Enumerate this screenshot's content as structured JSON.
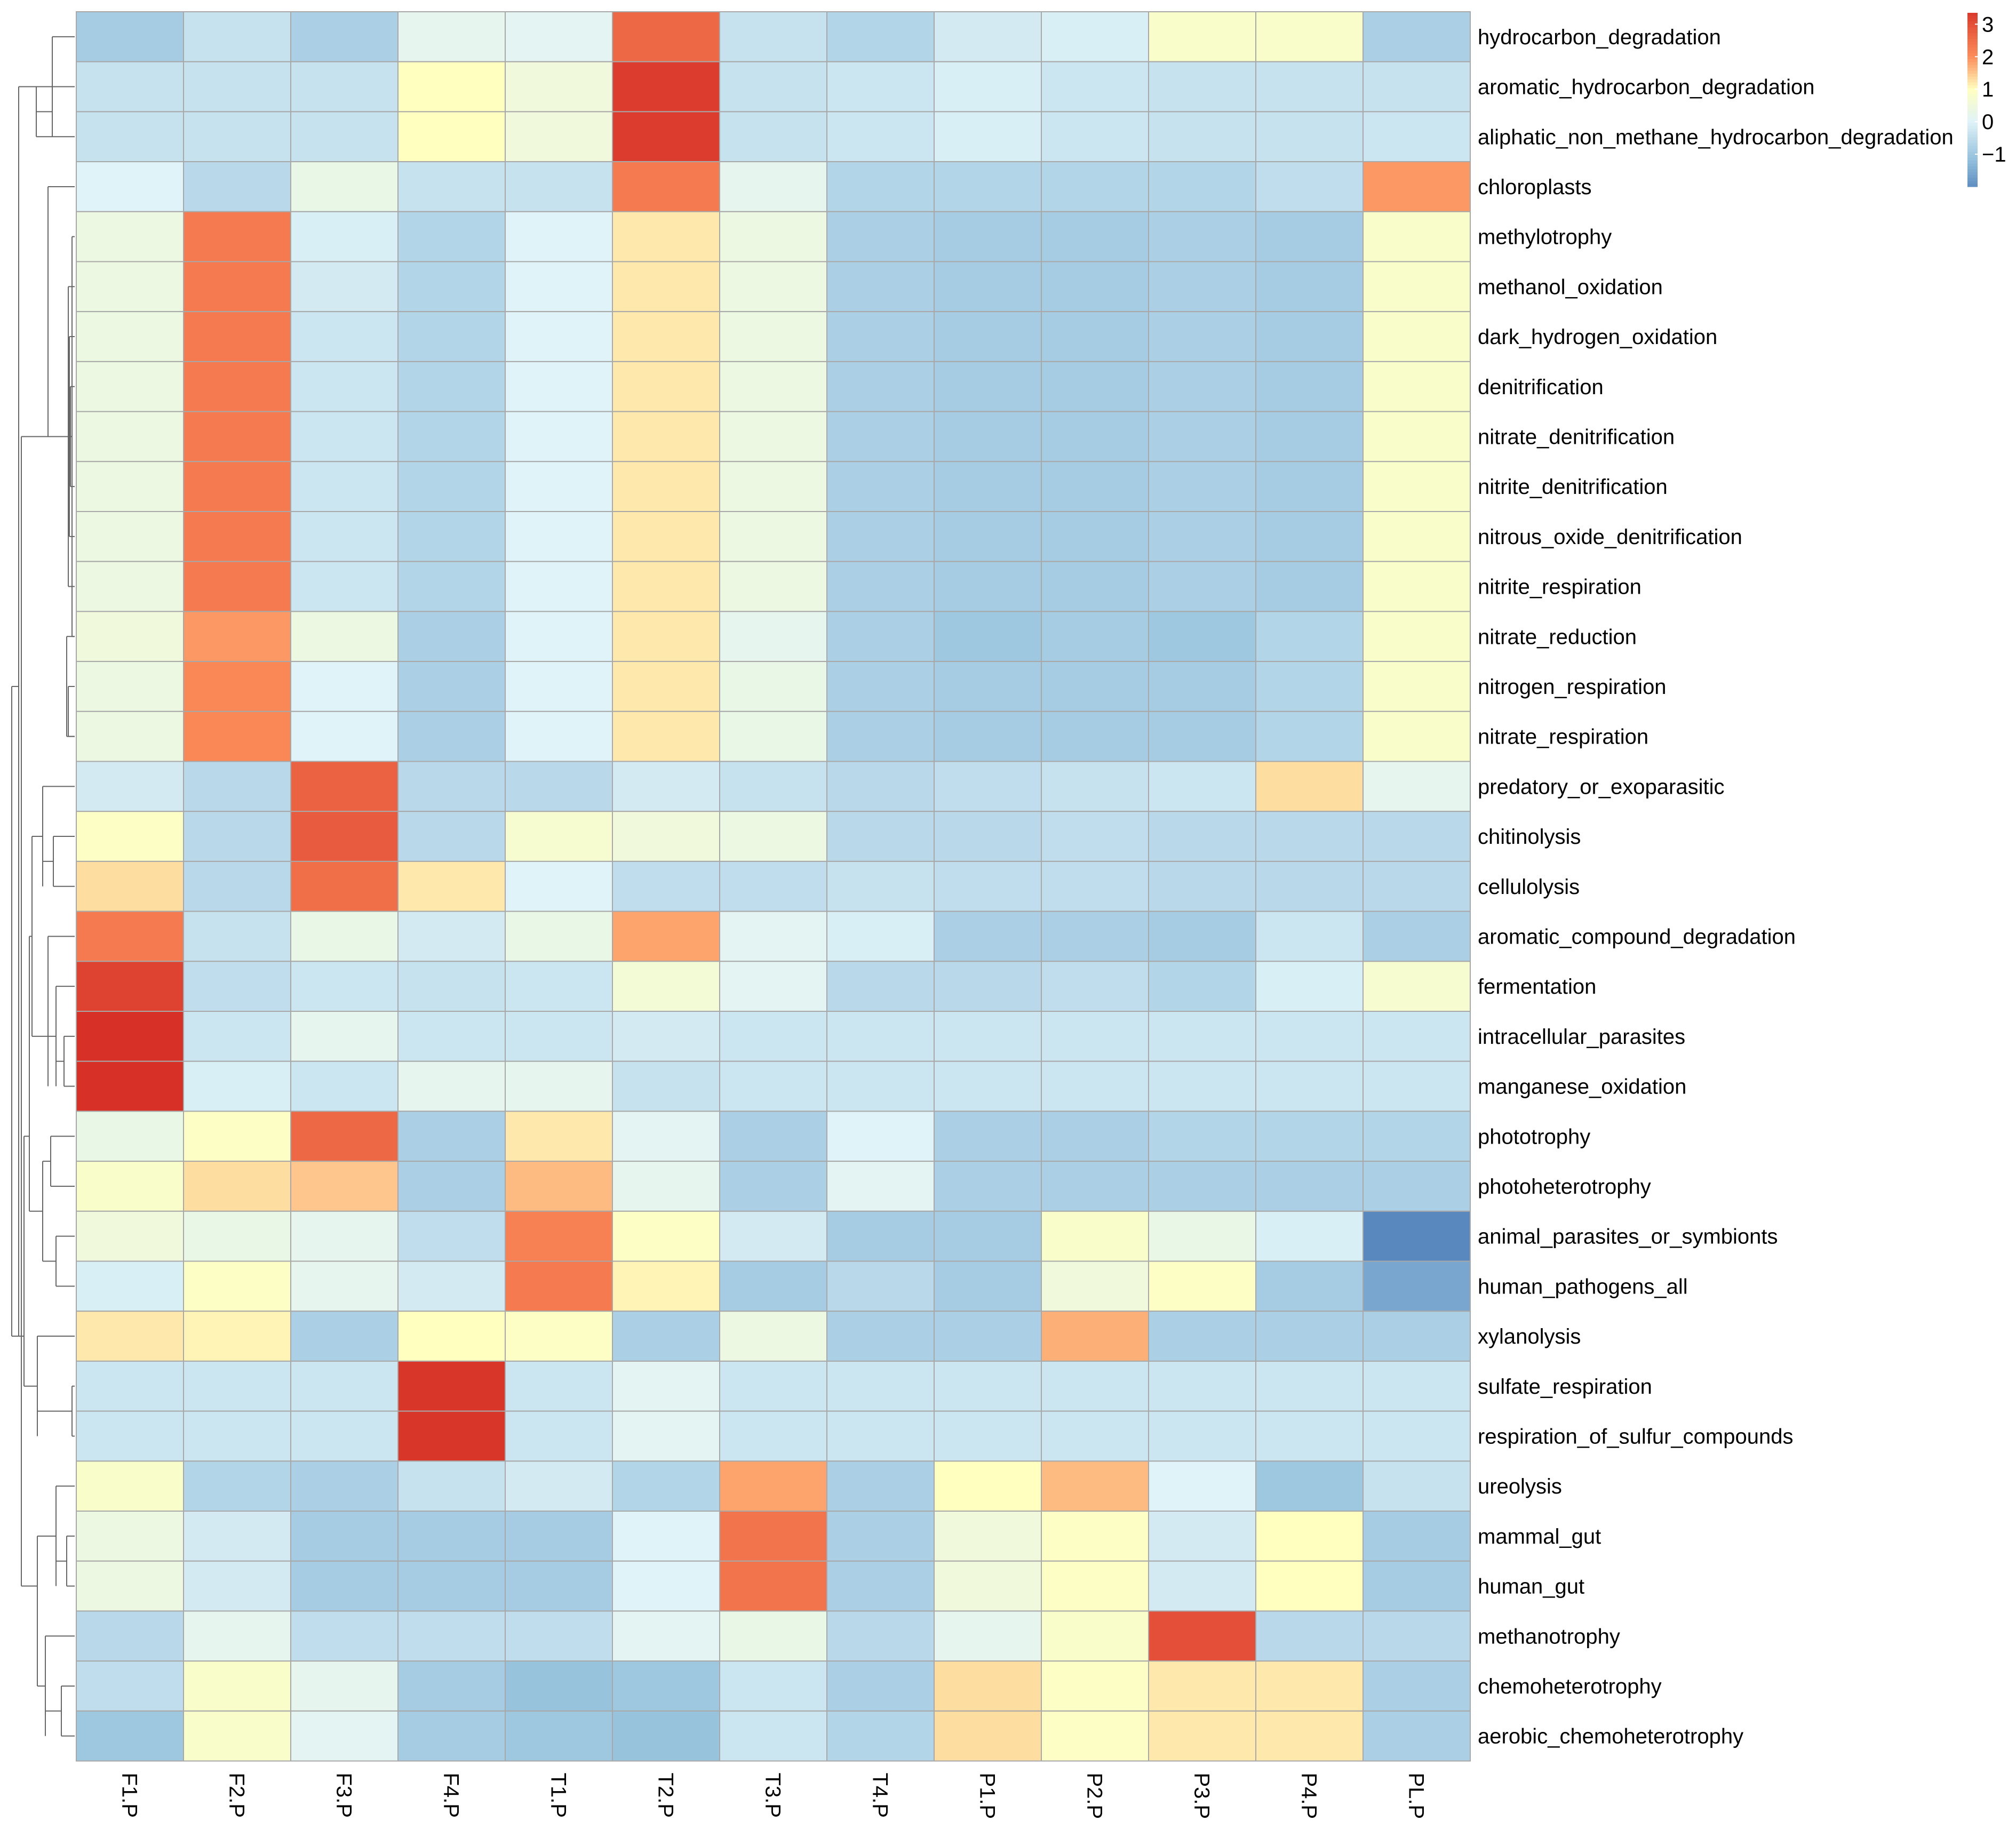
{
  "chart_data": {
    "type": "heatmap",
    "title": "",
    "columns": [
      "F1.P",
      "F2.P",
      "F3.P",
      "F4.P",
      "T1.P",
      "T2.P",
      "T3.P",
      "T4.P",
      "P1.P",
      "P2.P",
      "P3.P",
      "P4.P",
      "PL.P"
    ],
    "rows": [
      "hydrocarbon_degradation",
      "aromatic_hydrocarbon_degradation",
      "aliphatic_non_methane_hydrocarbon_degradation",
      "chloroplasts",
      "methylotrophy",
      "methanol_oxidation",
      "dark_hydrogen_oxidation",
      "denitrification",
      "nitrate_denitrification",
      "nitrite_denitrification",
      "nitrous_oxide_denitrification",
      "nitrite_respiration",
      "nitrate_reduction",
      "nitrogen_respiration",
      "nitrate_respiration",
      "predatory_or_exoparasitic",
      "chitinolysis",
      "cellulolysis",
      "aromatic_compound_degradation",
      "fermentation",
      "intracellular_parasites",
      "manganese_oxidation",
      "phototrophy",
      "photoheterotrophy",
      "animal_parasites_or_symbionts",
      "human_pathogens_all",
      "xylanolysis",
      "sulfate_respiration",
      "respiration_of_sulfur_compounds",
      "ureolysis",
      "mammal_gut",
      "human_gut",
      "methanotrophy",
      "chemoheterotrophy",
      "aerobic_chemoheterotrophy"
    ],
    "values": [
      [
        -0.9,
        -0.4,
        -0.8,
        0.2,
        0.1,
        2.6,
        -0.4,
        -0.7,
        -0.2,
        -0.1,
        0.8,
        0.8,
        -0.8
      ],
      [
        -0.4,
        -0.4,
        -0.4,
        1.0,
        0.5,
        3.3,
        -0.4,
        -0.3,
        -0.1,
        -0.3,
        -0.4,
        -0.4,
        -0.4
      ],
      [
        -0.4,
        -0.4,
        -0.4,
        1.0,
        0.5,
        3.3,
        -0.4,
        -0.3,
        -0.1,
        -0.3,
        -0.4,
        -0.4,
        -0.3
      ],
      [
        0.0,
        -0.6,
        0.3,
        -0.4,
        -0.4,
        2.3,
        0.2,
        -0.7,
        -0.7,
        -0.7,
        -0.7,
        -0.5,
        1.9
      ],
      [
        0.4,
        2.3,
        -0.1,
        -0.7,
        0.0,
        1.2,
        0.4,
        -0.8,
        -0.9,
        -0.9,
        -0.8,
        -0.9,
        0.8
      ],
      [
        0.4,
        2.3,
        -0.2,
        -0.7,
        0.0,
        1.2,
        0.4,
        -0.8,
        -0.9,
        -0.9,
        -0.8,
        -0.9,
        0.8
      ],
      [
        0.4,
        2.3,
        -0.3,
        -0.7,
        0.0,
        1.2,
        0.4,
        -0.8,
        -0.9,
        -0.9,
        -0.8,
        -0.9,
        0.8
      ],
      [
        0.4,
        2.3,
        -0.3,
        -0.7,
        0.0,
        1.2,
        0.4,
        -0.8,
        -0.9,
        -0.9,
        -0.8,
        -0.9,
        0.8
      ],
      [
        0.4,
        2.3,
        -0.3,
        -0.7,
        0.0,
        1.2,
        0.4,
        -0.8,
        -0.9,
        -0.9,
        -0.8,
        -0.9,
        0.8
      ],
      [
        0.4,
        2.3,
        -0.3,
        -0.7,
        0.0,
        1.2,
        0.4,
        -0.8,
        -0.9,
        -0.9,
        -0.8,
        -0.9,
        0.8
      ],
      [
        0.4,
        2.3,
        -0.3,
        -0.7,
        0.0,
        1.2,
        0.4,
        -0.8,
        -0.9,
        -0.9,
        -0.8,
        -0.9,
        0.8
      ],
      [
        0.4,
        2.3,
        -0.3,
        -0.7,
        0.0,
        1.2,
        0.4,
        -0.8,
        -0.9,
        -0.9,
        -0.8,
        -0.9,
        0.8
      ],
      [
        0.5,
        1.9,
        0.4,
        -0.8,
        0.0,
        1.2,
        0.2,
        -0.8,
        -1.0,
        -0.9,
        -1.0,
        -0.7,
        0.8
      ],
      [
        0.4,
        2.1,
        0.0,
        -0.8,
        0.0,
        1.2,
        0.3,
        -0.8,
        -0.9,
        -0.9,
        -0.9,
        -0.7,
        0.8
      ],
      [
        0.4,
        2.1,
        0.0,
        -0.8,
        0.0,
        1.2,
        0.3,
        -0.8,
        -0.9,
        -0.9,
        -0.9,
        -0.7,
        0.8
      ],
      [
        -0.2,
        -0.6,
        2.7,
        -0.6,
        -0.6,
        -0.2,
        -0.4,
        -0.6,
        -0.5,
        -0.4,
        -0.3,
        1.3,
        0.2
      ],
      [
        0.9,
        -0.6,
        2.8,
        -0.6,
        0.7,
        0.5,
        0.4,
        -0.6,
        -0.6,
        -0.5,
        -0.6,
        -0.6,
        -0.6
      ],
      [
        1.3,
        -0.6,
        2.5,
        1.2,
        0.0,
        -0.5,
        -0.5,
        -0.4,
        -0.5,
        -0.5,
        -0.6,
        -0.6,
        -0.6
      ],
      [
        2.3,
        -0.4,
        0.3,
        -0.2,
        0.3,
        1.8,
        0.1,
        -0.1,
        -0.8,
        -0.8,
        -0.9,
        -0.3,
        -0.8
      ],
      [
        3.2,
        -0.5,
        -0.3,
        -0.4,
        -0.3,
        0.6,
        0.1,
        -0.6,
        -0.6,
        -0.5,
        -0.7,
        -0.1,
        0.7
      ],
      [
        3.5,
        -0.3,
        0.2,
        -0.3,
        -0.3,
        -0.2,
        -0.3,
        -0.3,
        -0.3,
        -0.3,
        -0.3,
        -0.3,
        -0.3
      ],
      [
        3.5,
        -0.1,
        -0.3,
        0.2,
        0.2,
        -0.4,
        -0.3,
        -0.3,
        -0.3,
        -0.3,
        -0.3,
        -0.3,
        -0.3
      ],
      [
        0.3,
        0.9,
        2.6,
        -0.8,
        1.2,
        0.1,
        -0.8,
        0.0,
        -0.8,
        -0.8,
        -0.7,
        -0.7,
        -0.7
      ],
      [
        0.8,
        1.3,
        1.5,
        -0.8,
        1.6,
        0.2,
        -0.8,
        0.1,
        -0.8,
        -0.8,
        -0.8,
        -0.8,
        -0.8
      ],
      [
        0.5,
        0.3,
        0.2,
        -0.5,
        2.2,
        0.9,
        -0.2,
        -0.9,
        -0.9,
        0.8,
        0.3,
        -0.1,
        -2.1
      ],
      [
        -0.1,
        0.9,
        0.2,
        -0.2,
        2.3,
        1.1,
        -0.9,
        -0.6,
        -0.9,
        0.5,
        0.9,
        -0.9,
        -1.6
      ],
      [
        1.2,
        1.1,
        -0.8,
        1.0,
        0.9,
        -0.8,
        0.4,
        -0.8,
        -0.8,
        1.7,
        -0.8,
        -0.8,
        -0.8
      ],
      [
        -0.3,
        -0.3,
        -0.3,
        3.4,
        -0.3,
        0.1,
        -0.3,
        -0.3,
        -0.3,
        -0.3,
        -0.3,
        -0.3,
        -0.3
      ],
      [
        -0.3,
        -0.3,
        -0.3,
        3.4,
        -0.3,
        0.1,
        -0.3,
        -0.3,
        -0.3,
        -0.3,
        -0.3,
        -0.3,
        -0.3
      ],
      [
        0.8,
        -0.7,
        -0.8,
        -0.4,
        -0.2,
        -0.7,
        1.8,
        -0.8,
        1.0,
        1.6,
        0.0,
        -1.0,
        -0.4
      ],
      [
        0.4,
        -0.2,
        -0.9,
        -0.9,
        -0.9,
        0.0,
        2.4,
        -0.8,
        0.5,
        0.9,
        -0.2,
        1.0,
        -0.9
      ],
      [
        0.4,
        -0.2,
        -0.9,
        -0.9,
        -0.9,
        0.0,
        2.4,
        -0.8,
        0.5,
        0.9,
        -0.2,
        1.0,
        -0.9
      ],
      [
        -0.6,
        0.2,
        -0.5,
        -0.5,
        -0.5,
        0.1,
        0.3,
        -0.6,
        0.2,
        0.8,
        3.0,
        -0.6,
        -0.6
      ],
      [
        -0.5,
        0.8,
        0.2,
        -0.9,
        -1.1,
        -1.0,
        -0.3,
        -0.8,
        1.3,
        0.9,
        1.2,
        1.2,
        -0.8
      ],
      [
        -1.0,
        0.8,
        0.1,
        -0.9,
        -1.0,
        -1.1,
        -0.3,
        -0.7,
        1.3,
        0.9,
        1.2,
        1.2,
        -0.8
      ]
    ],
    "color_scale": {
      "stops": [
        -2.4,
        -1.2,
        0,
        1,
        2,
        3.5
      ],
      "colors": [
        "#4575b4",
        "#91bfdb",
        "#e0f3f8",
        "#ffffbf",
        "#fc8d59",
        "#d73027"
      ],
      "legend_ticks": [
        "3",
        "2",
        "1",
        "0",
        "−1"
      ],
      "legend_tick_values": [
        3,
        2,
        1,
        0,
        -1
      ],
      "legend_range": [
        -2.0,
        3.35
      ]
    },
    "dendrogram": "row clustering, left side"
  }
}
